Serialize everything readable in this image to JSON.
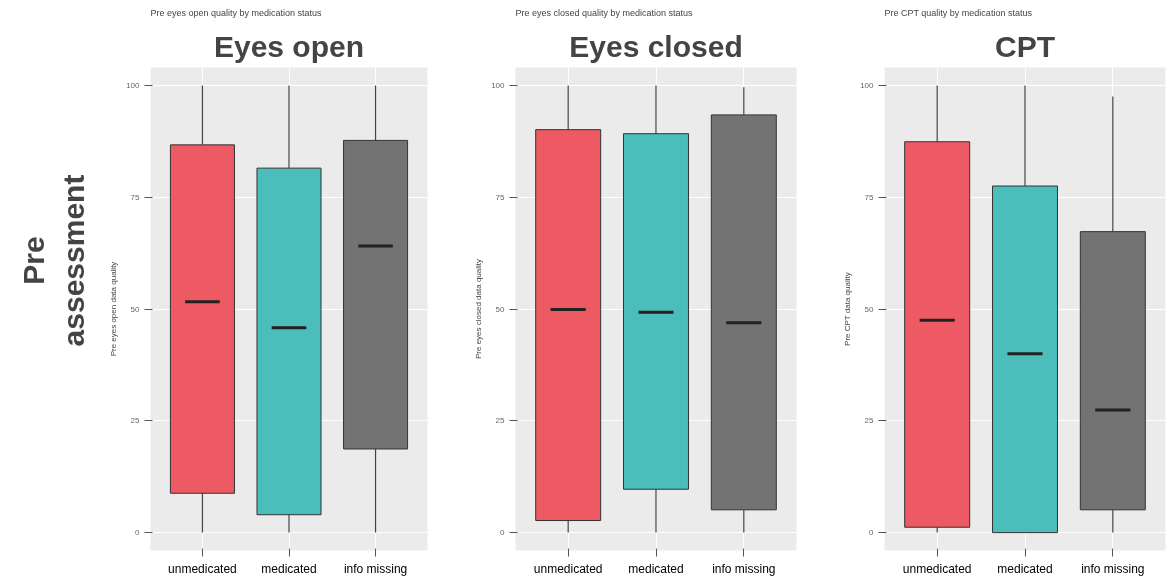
{
  "chart_data": [
    {
      "type": "box",
      "title": "Eyes open",
      "subtitle": "Pre eyes open quality by medication status",
      "ylabel": "Pre eyes open data quality",
      "annotations": [
        "Pre assessment"
      ],
      "categories": [
        "unmedicated",
        "medicated",
        "info missing"
      ],
      "colors": [
        "#ee5a63",
        "#4bbdba",
        "#737373"
      ],
      "ylim": [
        -4,
        104
      ],
      "yticks": [
        0,
        25,
        50,
        75,
        100
      ],
      "grid": true,
      "boxes": [
        {
          "low": 0,
          "q1": 8.8,
          "median": 51.6,
          "q3": 86.7,
          "high": 100
        },
        {
          "low": 0,
          "q1": 4.0,
          "median": 45.8,
          "q3": 81.5,
          "high": 100
        },
        {
          "low": 0,
          "q1": 18.7,
          "median": 64.1,
          "q3": 87.7,
          "high": 100
        }
      ]
    },
    {
      "type": "box",
      "title": "Eyes closed",
      "subtitle": "Pre eyes closed quality by medication status",
      "ylabel": "Pre eyes closed data quality",
      "categories": [
        "unmedicated",
        "medicated",
        "info missing"
      ],
      "colors": [
        "#ee5a63",
        "#4bbdba",
        "#737373"
      ],
      "ylim": [
        -4,
        104
      ],
      "yticks": [
        0,
        25,
        50,
        75,
        100
      ],
      "grid": true,
      "boxes": [
        {
          "low": 0,
          "q1": 2.7,
          "median": 49.9,
          "q3": 90.1,
          "high": 100
        },
        {
          "low": 0,
          "q1": 9.7,
          "median": 49.3,
          "q3": 89.2,
          "high": 100
        },
        {
          "low": 0,
          "q1": 5.1,
          "median": 46.9,
          "q3": 93.4,
          "high": 99.6
        }
      ]
    },
    {
      "type": "box",
      "title": "CPT",
      "subtitle": "Pre CPT quality by medication status",
      "ylabel": "Pre CPT data quality",
      "categories": [
        "unmedicated",
        "medicated",
        "info missing"
      ],
      "colors": [
        "#ee5a63",
        "#4bbdba",
        "#737373"
      ],
      "ylim": [
        -4,
        104
      ],
      "yticks": [
        0,
        25,
        50,
        75,
        100
      ],
      "grid": true,
      "boxes": [
        {
          "low": 0,
          "q1": 1.2,
          "median": 47.5,
          "q3": 87.4,
          "high": 100
        },
        {
          "low": 0,
          "q1": 0,
          "median": 40.0,
          "q3": 77.5,
          "high": 100
        },
        {
          "low": 0,
          "q1": 5.1,
          "median": 27.4,
          "q3": 67.3,
          "high": 97.5
        }
      ]
    }
  ]
}
